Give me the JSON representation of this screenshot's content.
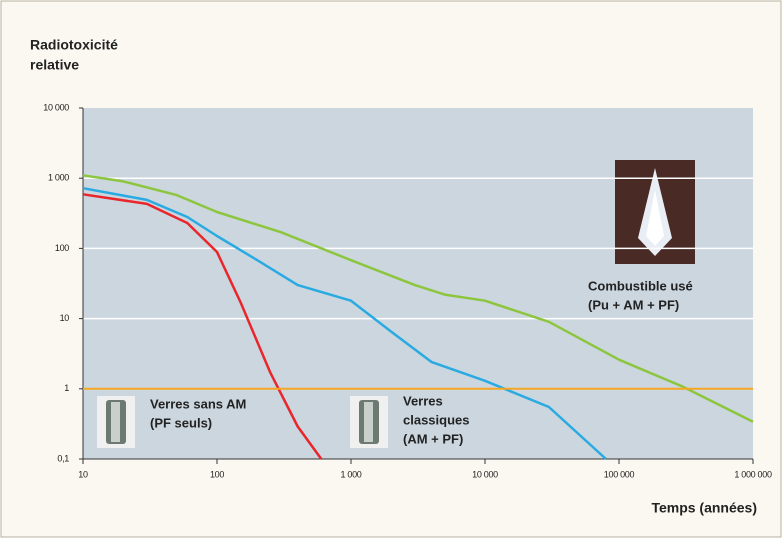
{
  "chart_data": {
    "type": "line",
    "y_label": [
      "Radiotoxicité",
      "relative"
    ],
    "x_label": "Temps (années)",
    "log_x": true,
    "log_y": true,
    "grid": true,
    "xlim": [
      10,
      1000000
    ],
    "ylim": [
      0.1,
      10000
    ],
    "xticks": [
      10,
      100,
      {
        "value": 1000,
        "label": "1 000"
      },
      {
        "value": 10000,
        "label": "10 000"
      },
      {
        "value": 100000,
        "label": "100 000"
      },
      {
        "value": 1000000,
        "label": "1 000 000"
      }
    ],
    "yticks": [
      {
        "value": 0.1,
        "label": "0,1"
      },
      1,
      10,
      100,
      {
        "value": 1000,
        "label": "1 000"
      },
      {
        "value": 10000,
        "label": "10 000"
      }
    ],
    "reference_line": {
      "value": 1,
      "color": "#f5a623"
    },
    "series": [
      {
        "color": "#8cc63f",
        "x": [
          10,
          20,
          50,
          100,
          300,
          1000,
          3000,
          5000,
          10000,
          30000,
          100000,
          300000,
          1000000
        ],
        "values": [
          1100,
          900,
          575,
          330,
          170,
          68,
          30,
          22,
          18,
          9,
          2.6,
          1.07,
          0.34
        ]
      },
      {
        "color": "#29abe2",
        "x": [
          10,
          30,
          60,
          100,
          200,
          400,
          1000,
          2000,
          4000,
          10000,
          30000,
          80000
        ],
        "values": [
          720,
          490,
          280,
          150,
          68,
          30,
          18,
          6.5,
          2.4,
          1.3,
          0.55,
          0.1
        ]
      },
      {
        "color": "#e8262b",
        "x": [
          10,
          30,
          60,
          100,
          150,
          250,
          400,
          600
        ],
        "values": [
          590,
          430,
          230,
          89,
          17,
          1.7,
          0.29,
          0.1
        ]
      }
    ],
    "annotations": [
      {
        "lines": [
          "Combustible usé",
          "(Pu + AM + PF)"
        ]
      },
      {
        "lines": [
          "Verres sans AM",
          "(PF seuls)"
        ]
      },
      {
        "lines": [
          "Verres",
          "classiques",
          "(AM + PF)"
        ]
      }
    ]
  }
}
